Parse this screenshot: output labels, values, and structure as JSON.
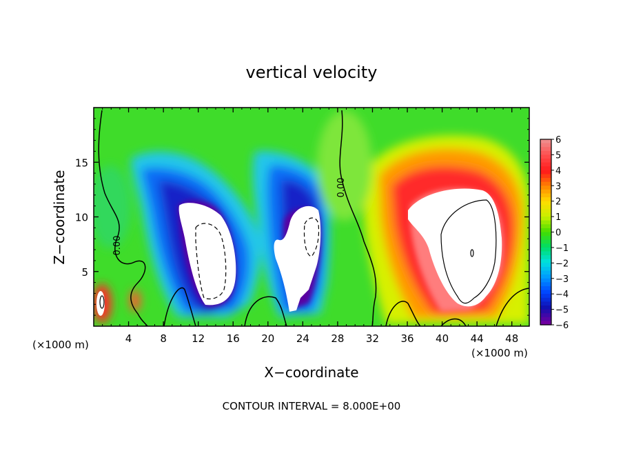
{
  "chart_data": {
    "type": "heatmap",
    "title": "vertical velocity",
    "xlabel": "X−coordinate",
    "ylabel": "Z−coordinate",
    "x_unit_left": "(×1000 m)",
    "x_unit_right": "(×1000 m)",
    "footer": "CONTOUR INTERVAL = 8.000E+00",
    "xlim": [
      0,
      50
    ],
    "ylim": [
      0,
      20
    ],
    "x_ticks": [
      4,
      8,
      12,
      16,
      20,
      24,
      28,
      32,
      36,
      40,
      44,
      48
    ],
    "x_tick_labels": [
      "4",
      "8",
      "12",
      "16",
      "20",
      "24",
      "28",
      "32",
      "36",
      "40",
      "44",
      "48"
    ],
    "y_ticks": [
      5,
      10,
      15
    ],
    "y_tick_labels": [
      "5",
      "10",
      "15"
    ],
    "zero_contour_label": "0.00",
    "colorbar": {
      "values": [
        6,
        5,
        4,
        3,
        2,
        1,
        0,
        -1,
        -2,
        -3,
        -4,
        -5,
        -6
      ],
      "labels": [
        "6",
        "5",
        "4",
        "3",
        "2",
        "1",
        "0",
        "−1",
        "−2",
        "−3",
        "−4",
        "−5",
        "−6"
      ],
      "colors": [
        "#f08a8a",
        "#ff4a4a",
        "#ff1a1a",
        "#ff8800",
        "#ffdd00",
        "#c8f000",
        "#44dd00",
        "#00dd66",
        "#00e0e0",
        "#0099ff",
        "#0044ff",
        "#1010b0",
        "#7000a0"
      ]
    },
    "features": [
      {
        "kind": "updraft",
        "x": 43,
        "z": 7,
        "rx": 7,
        "rz": 7,
        "peak": 8
      },
      {
        "kind": "downdraft",
        "x": 13,
        "z": 7,
        "rx": 3,
        "rz": 5,
        "peak": -8
      },
      {
        "kind": "downdraft",
        "x": 24,
        "z": 7,
        "rx": 2.5,
        "rz": 4,
        "peak": -8
      },
      {
        "kind": "updraft",
        "x": 1,
        "z": 2,
        "rx": 1.2,
        "rz": 2,
        "peak": 6
      }
    ]
  }
}
